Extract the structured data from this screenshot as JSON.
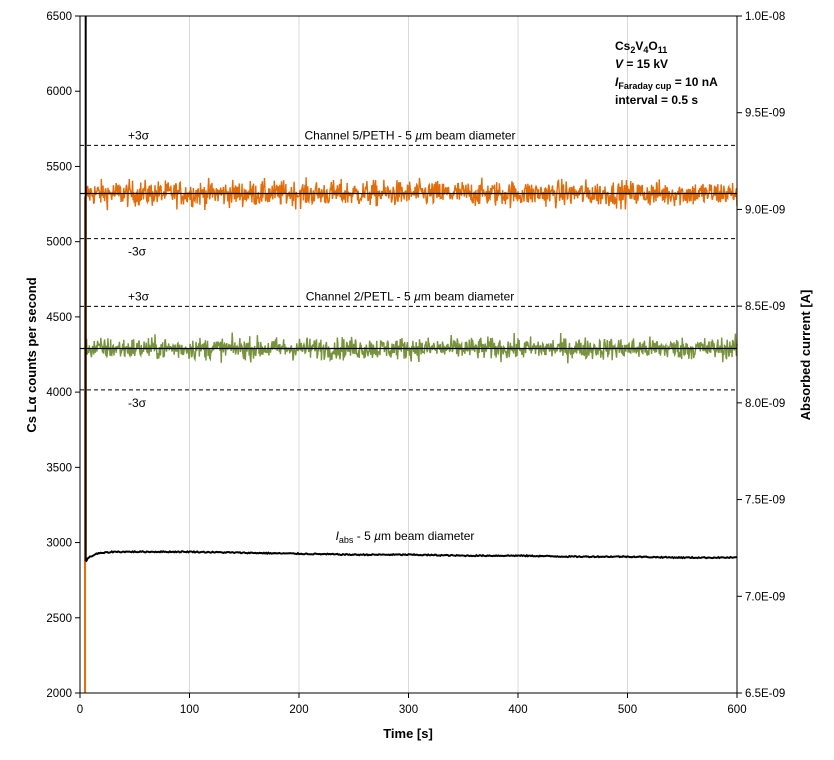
{
  "chart_data": {
    "type": "line",
    "xlabel": "Time [s]",
    "ylabel": "Cs Lα counts per second",
    "y2label": "Absorbed current [A]",
    "xlim": [
      0,
      600
    ],
    "ylim": [
      2000,
      6500
    ],
    "y2lim": [
      6.5e-09,
      1e-08
    ],
    "x_ticks": [
      "0",
      "100",
      "200",
      "300",
      "400",
      "500",
      "600"
    ],
    "y_ticks": [
      "2000",
      "2500",
      "3000",
      "3500",
      "4000",
      "4500",
      "5000",
      "5500",
      "6000",
      "6500"
    ],
    "y2_ticks": [
      "6.5E-09",
      "7.0E-09",
      "7.5E-09",
      "8.0E-09",
      "8.5E-09",
      "9.0E-09",
      "9.5E-09",
      "1.0E-08"
    ],
    "grid": "vertical",
    "sample_interval_s": 0.5,
    "info": {
      "compound_parts": [
        [
          "Cs",
          ""
        ],
        [
          "2",
          "sub"
        ],
        [
          "V",
          ""
        ],
        [
          "4",
          "sub"
        ],
        [
          "O",
          ""
        ],
        [
          "11",
          "sub"
        ]
      ],
      "voltage_label": "V",
      "voltage_value": " = 15 kV",
      "current_label": "I",
      "current_sub": "Faraday cup",
      "current_value": " = 10 nA",
      "interval": "interval = 0.5 s"
    },
    "series": [
      {
        "name": "Channel 5/PETH - 5 µm beam diameter",
        "name_prefix": "Channel 5/PETH - 5 ",
        "name_mu": "µ",
        "name_suffix": "m beam diameter",
        "color": "#e36c0a",
        "axis": "left",
        "x_start": 5,
        "mean": 5320,
        "plus3sigma": 5640,
        "minus3sigma": 5020,
        "noise_amplitude": 110,
        "plus_label": "+3σ",
        "minus_label": "-3σ"
      },
      {
        "name": "Channel 2/PETL - 5 µm beam diameter",
        "name_prefix": "Channel 2/PETL - 5 ",
        "name_mu": "µ",
        "name_suffix": "m beam diameter",
        "color": "#77933c",
        "axis": "left",
        "x_start": 5,
        "mean": 4290,
        "plus3sigma": 4570,
        "minus3sigma": 4015,
        "noise_amplitude": 95,
        "plus_label": "+3σ",
        "minus_label": "-3σ"
      },
      {
        "name": "I_abs - 5 µm beam diameter",
        "name_prefix_main": "I",
        "name_prefix_sub": "abs",
        "name_rest": " - 5 ",
        "name_mu": "µ",
        "name_suffix": "m beam diameter",
        "color": "#000000",
        "axis": "right",
        "points": [
          [
            5,
            7.18e-09
          ],
          [
            8,
            7.2e-09
          ],
          [
            15,
            7.22e-09
          ],
          [
            30,
            7.23e-09
          ],
          [
            60,
            7.23e-09
          ],
          [
            100,
            7.23e-09
          ],
          [
            150,
            7.225e-09
          ],
          [
            200,
            7.22e-09
          ],
          [
            250,
            7.215e-09
          ],
          [
            300,
            7.215e-09
          ],
          [
            350,
            7.21e-09
          ],
          [
            400,
            7.21e-09
          ],
          [
            450,
            7.205e-09
          ],
          [
            500,
            7.205e-09
          ],
          [
            550,
            7.2e-09
          ],
          [
            600,
            7.2e-09
          ]
        ]
      }
    ]
  }
}
